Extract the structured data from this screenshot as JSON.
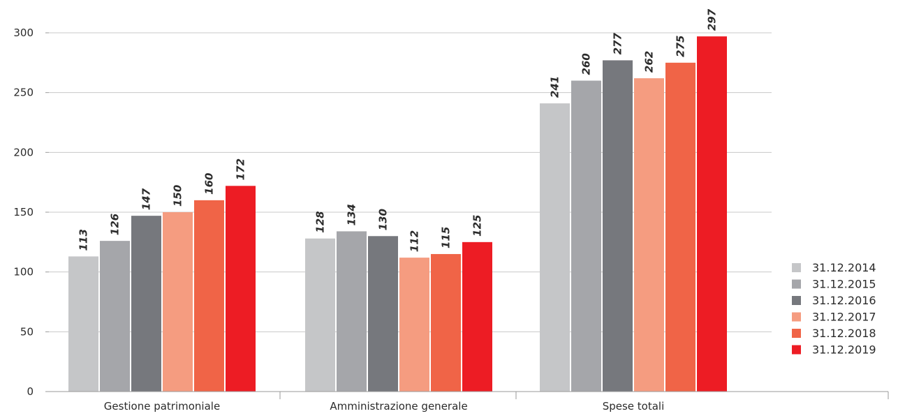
{
  "chart_data": {
    "type": "bar",
    "categories": [
      "Gestione patrimoniale",
      "Amministrazione generale",
      "Spese totali"
    ],
    "series": [
      {
        "name": "31.12.2014",
        "color": "#c5c6c8",
        "values": [
          113,
          128,
          241
        ]
      },
      {
        "name": "31.12.2015",
        "color": "#a5a6aa",
        "values": [
          126,
          134,
          260
        ]
      },
      {
        "name": "31.12.2016",
        "color": "#76787d",
        "values": [
          147,
          130,
          277
        ]
      },
      {
        "name": "31.12.2017",
        "color": "#f59c80",
        "values": [
          150,
          112,
          262
        ]
      },
      {
        "name": "31.12.2018",
        "color": "#f06447",
        "values": [
          160,
          115,
          275
        ]
      },
      {
        "name": "31.12.2019",
        "color": "#ed1c24",
        "values": [
          172,
          125,
          297
        ]
      }
    ],
    "yticks": [
      "0",
      "50",
      "100",
      "150",
      "200",
      "250",
      "300"
    ],
    "ylim": [
      0,
      300
    ],
    "grid": true,
    "legend_position": "right"
  }
}
